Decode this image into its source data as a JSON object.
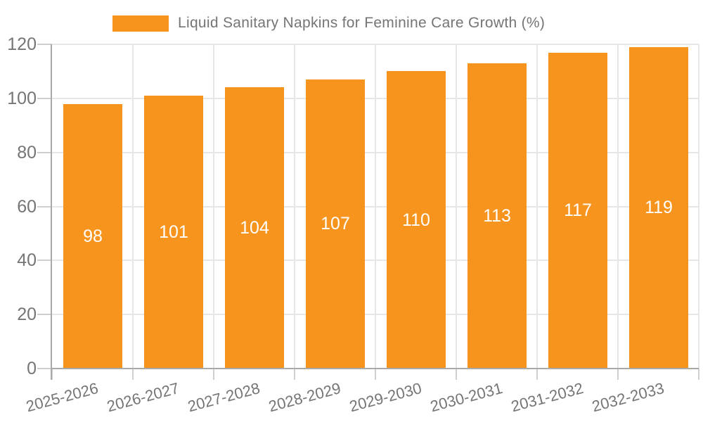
{
  "legend": {
    "label": "Liquid Sanitary Napkins for Feminine Care Growth (%)",
    "swatch_color": "#F7941E",
    "position": "top"
  },
  "chart_data": {
    "type": "bar",
    "title": "Liquid Sanitary Napkins for Feminine Care Growth (%)",
    "categories": [
      "2025-2026",
      "2026-2027",
      "2027-2028",
      "2028-2029",
      "2029-2030",
      "2030-2031",
      "2031-2032",
      "2032-2033"
    ],
    "values": [
      98,
      101,
      104,
      107,
      110,
      113,
      117,
      119
    ],
    "value_labels": [
      "98",
      "101",
      "104",
      "107",
      "110",
      "113",
      "117",
      "119"
    ],
    "xlabel": "",
    "ylabel": "",
    "ylim": [
      0,
      120
    ],
    "yticks": [
      0,
      20,
      40,
      60,
      80,
      100,
      120
    ],
    "grid": true,
    "legend_position": "top",
    "bar_color": "#F7941E",
    "value_label_color": "#ffffff",
    "axis_text_color": "#757575",
    "axis_line_color": "#a9a9a9",
    "gridline_color": "#e6e6e6",
    "background_color": "#ffffff"
  }
}
